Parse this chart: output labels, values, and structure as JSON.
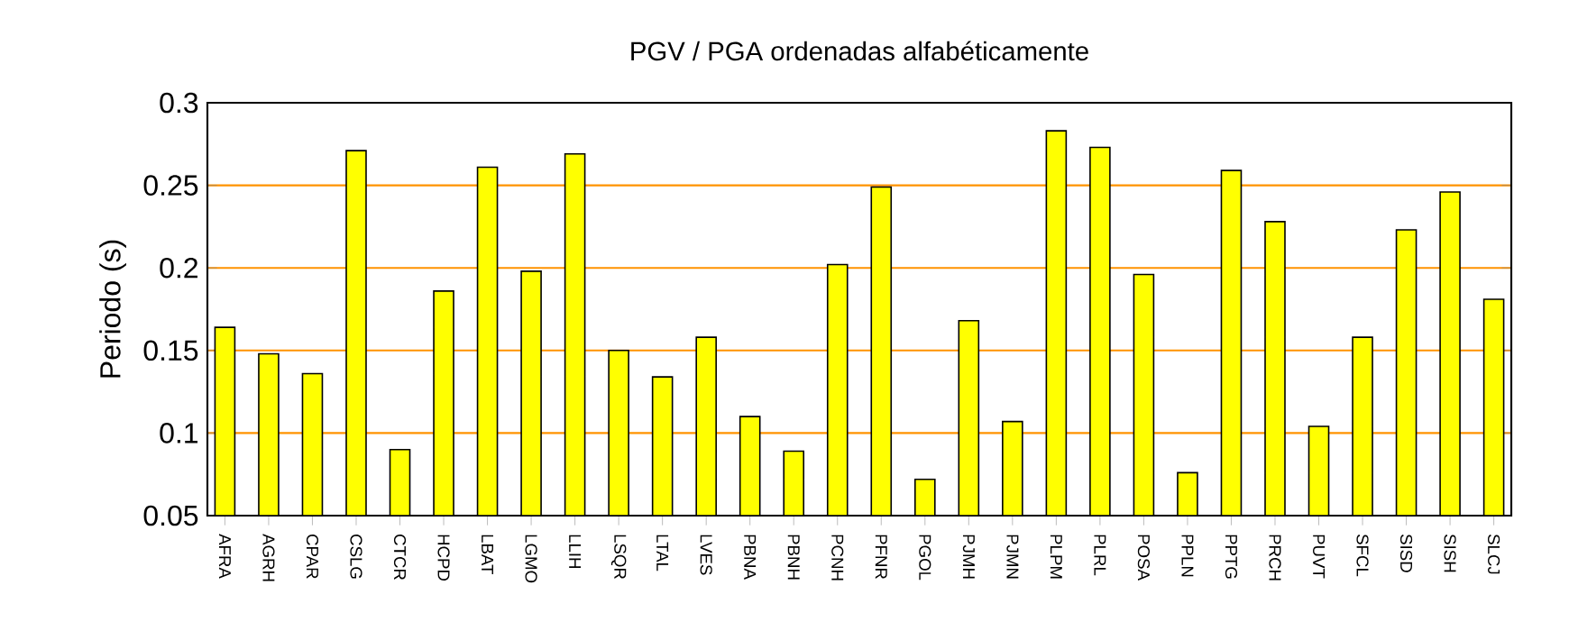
{
  "chart_data": {
    "type": "bar",
    "title": "PGV / PGA ordenadas alfabéticamente",
    "ylabel": "Periodo (s)",
    "categories": [
      "AFRA",
      "AGRH",
      "CPAR",
      "CSLG",
      "CTCR",
      "HCPD",
      "LBAT",
      "LGMO",
      "LLIH",
      "LSQR",
      "LTAL",
      "LVES",
      "PBNA",
      "PBNH",
      "PCNH",
      "PFNR",
      "PGOL",
      "PJMH",
      "PJMN",
      "PLPM",
      "PLRL",
      "POSA",
      "PPLN",
      "PPTG",
      "PRCH",
      "PUVT",
      "SFCL",
      "SISD",
      "SISH",
      "SLCJ"
    ],
    "values": [
      0.164,
      0.148,
      0.136,
      0.271,
      0.09,
      0.186,
      0.261,
      0.198,
      0.269,
      0.15,
      0.134,
      0.158,
      0.11,
      0.089,
      0.202,
      0.249,
      0.072,
      0.168,
      0.107,
      0.283,
      0.273,
      0.196,
      0.076,
      0.259,
      0.228,
      0.104,
      0.158,
      0.223,
      0.246,
      0.181
    ],
    "color": "#ffff00",
    "ylim": [
      0.05,
      0.3
    ],
    "yticks": [
      0.05,
      0.1,
      0.15,
      0.2,
      0.25,
      0.3
    ],
    "grid": "y"
  }
}
